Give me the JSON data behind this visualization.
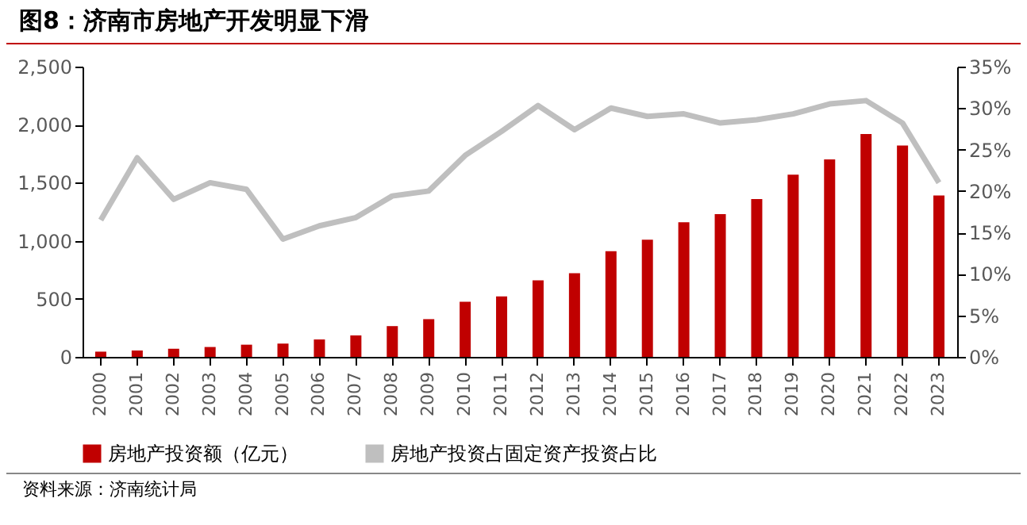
{
  "chart_data": {
    "type": "bar",
    "title": "图8：济南市房地产开发明显下滑",
    "categories": [
      "2000",
      "2001",
      "2002",
      "2003",
      "2004",
      "2005",
      "2006",
      "2007",
      "2008",
      "2009",
      "2010",
      "2011",
      "2012",
      "2013",
      "2014",
      "2015",
      "2016",
      "2017",
      "2018",
      "2019",
      "2020",
      "2021",
      "2022",
      "2023"
    ],
    "series": [
      {
        "name": "房地产投资额（亿元）",
        "color": "#c00000",
        "values": [
          45,
          55,
          70,
          85,
          105,
          115,
          150,
          185,
          265,
          325,
          475,
          520,
          660,
          720,
          910,
          1010,
          1160,
          1230,
          1360,
          1570,
          1700,
          1920,
          1820,
          1390
        ]
      },
      {
        "name": "房地产投资占固定资产投资占比",
        "type": "line",
        "axis": "y2",
        "color": "#bfbfbf",
        "values": [
          16.5,
          24,
          19,
          21,
          20.2,
          14.2,
          15.8,
          16.8,
          19.4,
          20,
          24.3,
          27.2,
          30.3,
          27.4,
          30,
          29,
          29.3,
          28.2,
          28.6,
          29.3,
          30.5,
          30.9,
          28.2,
          21
        ]
      }
    ],
    "ylim": [
      0,
      2500
    ],
    "yticks": [
      {
        "value": 0,
        "label": "0"
      },
      {
        "value": 500,
        "label": "500"
      },
      {
        "value": 1000,
        "label": "1,000"
      },
      {
        "value": 1500,
        "label": "1,500"
      },
      {
        "value": 2000,
        "label": "2,000"
      },
      {
        "value": 2500,
        "label": "2,500"
      }
    ],
    "y2lim": [
      0,
      35
    ],
    "y2ticks": [
      {
        "value": 0,
        "label": "0%"
      },
      {
        "value": 5,
        "label": "5%"
      },
      {
        "value": 10,
        "label": "10%"
      },
      {
        "value": 15,
        "label": "15%"
      },
      {
        "value": 20,
        "label": "20%"
      },
      {
        "value": 25,
        "label": "25%"
      },
      {
        "value": 30,
        "label": "30%"
      },
      {
        "value": 35,
        "label": "35%"
      }
    ],
    "grid": false,
    "legend": "bottom",
    "annotations": [
      "资料来源：济南统计局"
    ]
  }
}
